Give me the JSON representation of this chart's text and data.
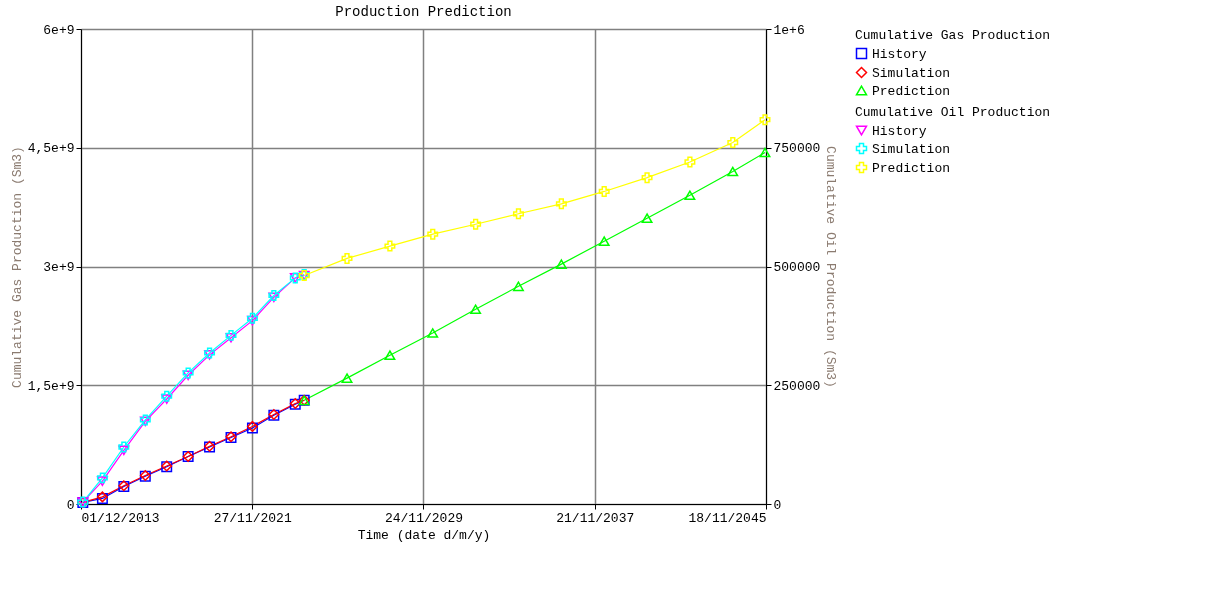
{
  "chart_data": {
    "type": "line",
    "title": "Production Prediction",
    "xlabel": "Time (date d/m/y)",
    "ylabel": "Cumulative Gas Production (Sm3)",
    "y2label": "Cumulative Oil Production (Sm3)",
    "xlim": [
      "2013-12-01",
      "2045-11-18"
    ],
    "xticks": [
      {
        "value": "2013-12-01",
        "label": "01/12/2013"
      },
      {
        "value": "2021-11-27",
        "label": "27/11/2021"
      },
      {
        "value": "2029-11-24",
        "label": "24/11/2029"
      },
      {
        "value": "2037-11-21",
        "label": "21/11/2037"
      },
      {
        "value": "2045-11-18",
        "label": "18/11/2045"
      }
    ],
    "ylim": [
      0,
      6000000000
    ],
    "yticks": [
      0,
      {
        "value": 1500000000,
        "label": "1,5e+9"
      },
      {
        "value": 3000000000,
        "label": "3e+9"
      },
      {
        "value": 4500000000,
        "label": "4,5e+9"
      },
      {
        "value": 6000000000,
        "label": "6e+9"
      }
    ],
    "y2lim": [
      0,
      1000000
    ],
    "y2ticks": [
      0,
      250000,
      500000,
      750000,
      {
        "value": 1000000,
        "label": "1e+6"
      }
    ],
    "grid": true,
    "legend": "right",
    "line_style": "solid",
    "legend_title": [
      "Cumulative Gas Production",
      "Cumulative Oil Production"
    ],
    "series": [
      {
        "name": "History",
        "axis": "y",
        "color": "#0000ff",
        "marker": "square",
        "x": [
          "2014-01",
          "2014-12",
          "2015-12",
          "2016-12",
          "2017-12",
          "2018-12",
          "2019-12",
          "2020-12",
          "2021-12",
          "2022-12",
          "2023-12",
          "2024-05"
        ],
        "values": [
          20000000,
          70000000,
          220000000,
          350000000,
          470000000,
          600000000,
          720000000,
          840000000,
          960000000,
          1120000000,
          1260000000,
          1310000000
        ]
      },
      {
        "name": "Simulation",
        "axis": "y",
        "color": "#ff0000",
        "marker": "diamond",
        "x": [
          "2014-01",
          "2014-12",
          "2015-12",
          "2016-12",
          "2017-12",
          "2018-12",
          "2019-12",
          "2020-12",
          "2021-12",
          "2022-12",
          "2023-12",
          "2024-05"
        ],
        "values": [
          20000000,
          90000000,
          230000000,
          360000000,
          480000000,
          600000000,
          730000000,
          850000000,
          980000000,
          1130000000,
          1270000000,
          1310000000
        ]
      },
      {
        "name": "Prediction",
        "axis": "y",
        "color": "#00ff00",
        "marker": "triangle",
        "x": [
          "2024-05",
          "2026-05",
          "2028-05",
          "2030-05",
          "2032-05",
          "2034-05",
          "2036-05",
          "2038-05",
          "2040-05",
          "2042-05",
          "2044-05",
          "2045-11"
        ],
        "values": [
          1310000000,
          1590000000,
          1880000000,
          2160000000,
          2460000000,
          2750000000,
          3030000000,
          3320000000,
          3610000000,
          3900000000,
          4200000000,
          4440000000
        ]
      },
      {
        "name": "History",
        "axis": "y2",
        "color": "#ff00ff",
        "marker": "triangle-down",
        "x": [
          "2014-01",
          "2014-12",
          "2015-12",
          "2016-12",
          "2017-12",
          "2018-12",
          "2019-12",
          "2020-12",
          "2021-12",
          "2022-12",
          "2023-12",
          "2024-05"
        ],
        "values": [
          4000,
          48000,
          113000,
          174000,
          221000,
          271000,
          314000,
          350000,
          386000,
          435000,
          476000,
          481000
        ]
      },
      {
        "name": "Simulation",
        "axis": "y2",
        "color": "#00ffff",
        "marker": "cross",
        "x": [
          "2014-01",
          "2014-12",
          "2015-12",
          "2016-12",
          "2017-12",
          "2018-12",
          "2019-12",
          "2020-12",
          "2021-12",
          "2022-12",
          "2023-12",
          "2024-05"
        ],
        "values": [
          4000,
          55000,
          120000,
          177000,
          227000,
          276000,
          318000,
          355000,
          391000,
          439000,
          476000,
          483000
        ]
      },
      {
        "name": "Prediction",
        "axis": "y2",
        "color": "#ffff00",
        "marker": "cross",
        "x": [
          "2024-05",
          "2026-05",
          "2028-05",
          "2030-05",
          "2032-05",
          "2034-05",
          "2036-05",
          "2038-05",
          "2040-05",
          "2042-05",
          "2044-05",
          "2045-11"
        ],
        "values": [
          481000,
          517000,
          543000,
          568000,
          589000,
          611000,
          632000,
          658000,
          687000,
          720000,
          761000,
          809000
        ]
      }
    ]
  }
}
